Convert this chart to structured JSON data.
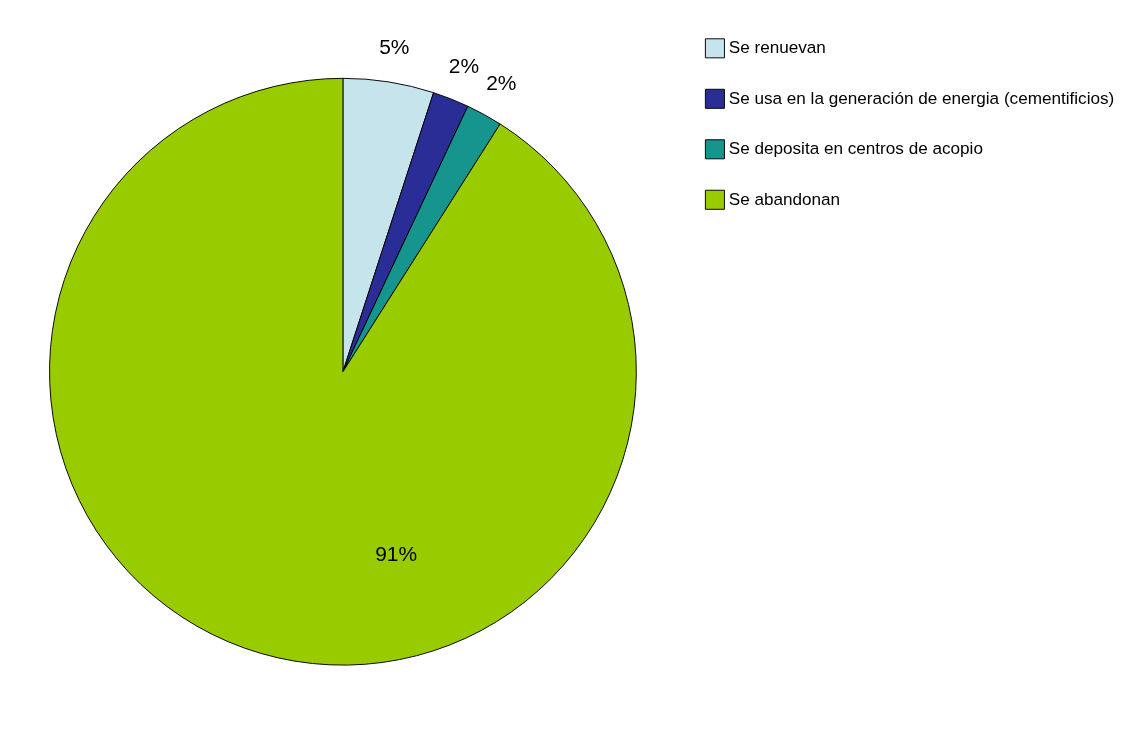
{
  "chart_data": {
    "type": "pie",
    "categories": [
      "Se renuevan",
      "Se usa en la generación de energia (cementificios)",
      "Se deposita en centros de acopio",
      "Se abandonan"
    ],
    "values": [
      5,
      2,
      2,
      91
    ],
    "colors": [
      "#c6e4ec",
      "#2b2d96",
      "#16958f",
      "#99cc00"
    ],
    "value_labels": [
      "5%",
      "2%",
      "2%",
      "91%"
    ],
    "legend": "right"
  }
}
